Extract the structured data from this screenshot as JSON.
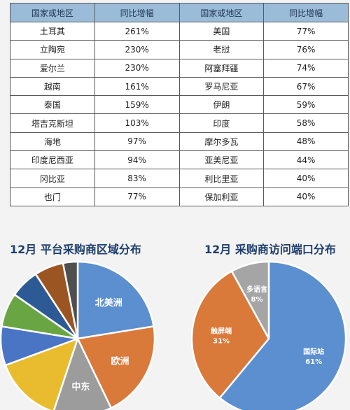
{
  "table": {
    "headers": [
      "国家或地区",
      "同比增幅",
      "国家或地区",
      "同比增幅"
    ],
    "rows": [
      [
        "土耳其",
        "261%",
        "美国",
        "77%"
      ],
      [
        "立陶宛",
        "230%",
        "老挝",
        "76%"
      ],
      [
        "爱尔兰",
        "230%",
        "阿塞拜疆",
        "74%"
      ],
      [
        "越南",
        "161%",
        "罗马尼亚",
        "67%"
      ],
      [
        "泰国",
        "159%",
        "伊朗",
        "59%"
      ],
      [
        "塔吉克斯坦",
        "103%",
        "印度",
        "58%"
      ],
      [
        "海地",
        "97%",
        "摩尔多瓦",
        "48%"
      ],
      [
        "印度尼西亚",
        "94%",
        "亚美尼亚",
        "44%"
      ],
      [
        "冈比亚",
        "83%",
        "利比里亚",
        "40%"
      ],
      [
        "也门",
        "77%",
        "保加利亚",
        "40%"
      ]
    ]
  },
  "chart_data": [
    {
      "type": "pie",
      "title": "12月 平台采购商区域分布",
      "slices": [
        {
          "label": "北美洲",
          "value": 22,
          "color": "#5b8fd0",
          "shown": true
        },
        {
          "label": "欧洲",
          "value": 20,
          "color": "#d9793a",
          "shown": true
        },
        {
          "label": "中东",
          "value": 12,
          "color": "#9c9c9c",
          "shown": true
        },
        {
          "label": "",
          "value": 14,
          "color": "#e9bc2f",
          "shown": false
        },
        {
          "label": "",
          "value": 8,
          "color": "#4a74c4",
          "shown": false
        },
        {
          "label": "",
          "value": 7,
          "color": "#6aa543",
          "shown": false
        },
        {
          "label": "",
          "value": 6,
          "color": "#2d5a94",
          "shown": false
        },
        {
          "label": "",
          "value": 6,
          "color": "#9b5523",
          "shown": false
        },
        {
          "label": "",
          "value": 3,
          "color": "#4f4f4f",
          "shown": false
        }
      ]
    },
    {
      "type": "pie",
      "title": "12月 采购商访问端口分布",
      "slices": [
        {
          "label": "国际站",
          "value": 61,
          "pct": "61%",
          "color": "#5b8fd0",
          "shown": true
        },
        {
          "label": "触屏端",
          "value": 31,
          "pct": "31%",
          "color": "#d9793a",
          "shown": true
        },
        {
          "label": "多语言",
          "value": 8,
          "pct": "8%",
          "color": "#a5a5a5",
          "shown": true
        }
      ]
    }
  ]
}
